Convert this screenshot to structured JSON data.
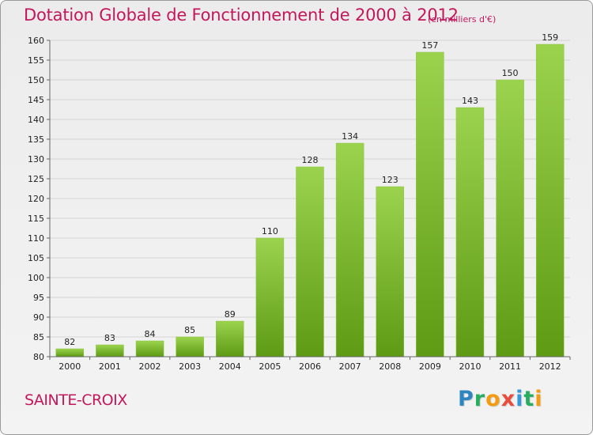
{
  "title": "Dotation Globale de Fonctionnement de 2000 à 2012",
  "unit_note": "(en milliers d'€)",
  "commune": "SAINTE-CROIX",
  "logo": {
    "letters": [
      "P",
      "r",
      "o",
      "x",
      "i",
      "t",
      "i"
    ],
    "colors": [
      "#2e86c1",
      "#27ae60",
      "#f39c12",
      "#e74c3c",
      "#3498db",
      "#27ae60",
      "#f39c12"
    ]
  },
  "colors": {
    "accent": "#c2185b",
    "bar_light": "#9bd34e",
    "bar_dark": "#5e9a14"
  },
  "chart_data": {
    "type": "bar",
    "categories": [
      "2000",
      "2001",
      "2002",
      "2003",
      "2004",
      "2005",
      "2006",
      "2007",
      "2008",
      "2009",
      "2010",
      "2011",
      "2012"
    ],
    "values": [
      82,
      83,
      84,
      85,
      89,
      110,
      128,
      134,
      123,
      157,
      143,
      150,
      159
    ],
    "title": "Dotation Globale de Fonctionnement de 2000 à 2012",
    "ylim": [
      80,
      160
    ],
    "yticks": [
      80,
      85,
      90,
      95,
      100,
      105,
      110,
      115,
      120,
      125,
      130,
      135,
      140,
      145,
      150,
      155,
      160
    ],
    "grid": true,
    "legend": "none"
  }
}
